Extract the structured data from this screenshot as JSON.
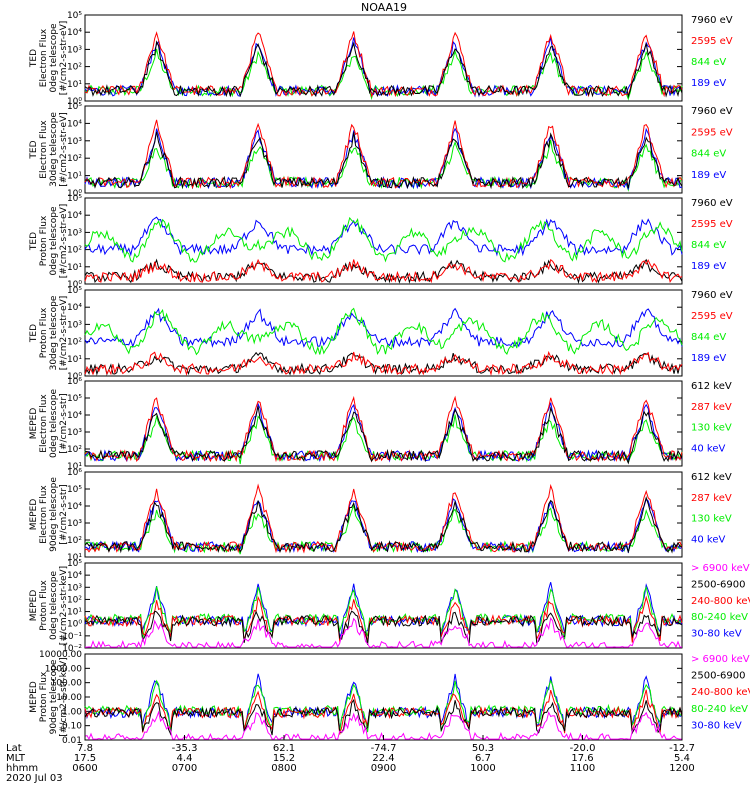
{
  "title": "NOAA19",
  "colors": {
    "black": "#000000",
    "red": "#ff0000",
    "green": "#00ee00",
    "blue": "#0000ff",
    "magenta": "#ff00ff"
  },
  "chart_data": {
    "type": "line",
    "x": {
      "range_hhmm": [
        "0600",
        "1200"
      ],
      "tick_rows": [
        {
          "name": "Lat",
          "values": [
            "7.8",
            "-35.3",
            "62.1",
            "-74.7",
            "50.3",
            "-20.0",
            "-12.7"
          ]
        },
        {
          "name": "MLT",
          "values": [
            "17.5",
            "4.4",
            "15.2",
            "22.4",
            "6.7",
            "17.6",
            "5.4"
          ]
        },
        {
          "name": "hhmm",
          "values": [
            "0600",
            "0700",
            "0800",
            "0900",
            "1000",
            "1100",
            "1200"
          ]
        }
      ],
      "date": "2020 Jul 03"
    },
    "panels": [
      {
        "ylabel": [
          "TED",
          "Electron Flux",
          "0deg telescope",
          "[#/cm2-s-str-eV]"
        ],
        "yticks": [
          "10⁰",
          "10¹",
          "10²",
          "10³",
          "10⁴",
          "10⁵"
        ],
        "scale": "log",
        "ylim_exp": [
          0,
          5
        ],
        "legend": [
          {
            "label": "7960 eV",
            "color": "black"
          },
          {
            "label": "2595 eV",
            "color": "red"
          },
          {
            "label": "844 eV",
            "color": "green"
          },
          {
            "label": "189 eV",
            "color": "blue"
          }
        ]
      },
      {
        "ylabel": [
          "TED",
          "Electron Flux",
          "30deg telescope",
          "[#/cm2-s-str-eV]"
        ],
        "yticks": [
          "10⁰",
          "10¹",
          "10²",
          "10³",
          "10⁴",
          "10⁵"
        ],
        "scale": "log",
        "ylim_exp": [
          0,
          5
        ],
        "legend": [
          {
            "label": "7960 eV",
            "color": "black"
          },
          {
            "label": "2595 eV",
            "color": "red"
          },
          {
            "label": "844 eV",
            "color": "green"
          },
          {
            "label": "189 eV",
            "color": "blue"
          }
        ]
      },
      {
        "ylabel": [
          "TED",
          "Proton Flux",
          "0deg telescope",
          "[#/cm2-s-str-eV]"
        ],
        "yticks": [
          "10⁰",
          "10¹",
          "10²",
          "10³",
          "10⁴",
          "10⁵"
        ],
        "scale": "log",
        "ylim_exp": [
          0,
          5
        ],
        "legend": [
          {
            "label": "7960 eV",
            "color": "black"
          },
          {
            "label": "2595 eV",
            "color": "red"
          },
          {
            "label": "844 eV",
            "color": "green"
          },
          {
            "label": "189 eV",
            "color": "blue"
          }
        ]
      },
      {
        "ylabel": [
          "TED",
          "Proton Flux",
          "30deg telescope",
          "[#/cm2-s-str-eV]"
        ],
        "yticks": [
          "10⁰",
          "10¹",
          "10²",
          "10³",
          "10⁴",
          "10⁵"
        ],
        "scale": "log",
        "ylim_exp": [
          0,
          5
        ],
        "legend": [
          {
            "label": "7960 eV",
            "color": "black"
          },
          {
            "label": "2595 eV",
            "color": "red"
          },
          {
            "label": "844 eV",
            "color": "green"
          },
          {
            "label": "189 eV",
            "color": "blue"
          }
        ]
      },
      {
        "ylabel": [
          "MEPED",
          "Electron Flux",
          "0deg telescope",
          "[#/cm2-s-str]"
        ],
        "yticks": [
          "10¹",
          "10²",
          "10³",
          "10⁴",
          "10⁵",
          "10⁶"
        ],
        "scale": "log",
        "ylim_exp": [
          1,
          6
        ],
        "legend": [
          {
            "label": "612 keV",
            "color": "black"
          },
          {
            "label": "287 keV",
            "color": "red"
          },
          {
            "label": "130 keV",
            "color": "green"
          },
          {
            "label": "40 keV",
            "color": "blue"
          }
        ]
      },
      {
        "ylabel": [
          "MEPED",
          "Electron Flux",
          "90deg telescope",
          "[#/cm2-s-str]"
        ],
        "yticks": [
          "10¹",
          "10²",
          "10³",
          "10⁴",
          "10⁵",
          "10⁶"
        ],
        "scale": "log",
        "ylim_exp": [
          1,
          6
        ],
        "legend": [
          {
            "label": "612 keV",
            "color": "black"
          },
          {
            "label": "287 keV",
            "color": "red"
          },
          {
            "label": "130 keV",
            "color": "green"
          },
          {
            "label": "40 keV",
            "color": "blue"
          }
        ]
      },
      {
        "ylabel": [
          "MEPED",
          "Proton Flux",
          "0deg telescope",
          "[#/cm2-s-str-keV]"
        ],
        "yticks": [
          "10⁻²",
          "10⁻¹",
          "10⁰",
          "10¹",
          "10²",
          "10³",
          "10⁴",
          "10⁵"
        ],
        "scale": "log",
        "ylim_exp": [
          -2,
          5
        ],
        "legend": [
          {
            "label": "> 6900 keV",
            "color": "magenta"
          },
          {
            "label": "2500-6900",
            "color": "black"
          },
          {
            "label": "240-800 keV",
            "color": "red"
          },
          {
            "label": "80-240 keV",
            "color": "green"
          },
          {
            "label": "30-80 keV",
            "color": "blue"
          }
        ]
      },
      {
        "ylabel": [
          "MEPED",
          "Proton Flux",
          "90deg telescope",
          "[#/cm2-s-str-keV]"
        ],
        "yticks": [
          "0.01",
          "0.10",
          "1.00",
          "10.00",
          "100.00",
          "1000.00",
          "10000.00"
        ],
        "scale": "log",
        "ylim_exp": [
          -2,
          4
        ],
        "legend": [
          {
            "label": "> 6900 keV",
            "color": "magenta"
          },
          {
            "label": "2500-6900",
            "color": "black"
          },
          {
            "label": "240-800 keV",
            "color": "red"
          },
          {
            "label": "80-240 keV",
            "color": "green"
          },
          {
            "label": "30-80 keV",
            "color": "blue"
          }
        ]
      }
    ]
  }
}
